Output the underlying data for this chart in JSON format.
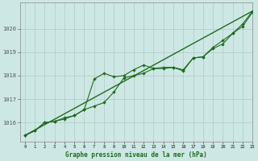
{
  "title": "Graphe pression niveau de la mer (hPa)",
  "background_color": "#cde8e4",
  "grid_color": "#b0c8c4",
  "line_color": "#1e6b1e",
  "xlim": [
    -0.5,
    23
  ],
  "ylim": [
    1015.2,
    1021.1
  ],
  "yticks": [
    1016,
    1017,
    1018,
    1019,
    1020
  ],
  "xticks": [
    0,
    1,
    2,
    3,
    4,
    5,
    6,
    7,
    8,
    9,
    10,
    11,
    12,
    13,
    14,
    15,
    16,
    17,
    18,
    19,
    20,
    21,
    22,
    23
  ],
  "series_marked_x": [
    0,
    1,
    2,
    3,
    4,
    5,
    6,
    7,
    8,
    9,
    10,
    11,
    12,
    13,
    14,
    15,
    16,
    17,
    18,
    19,
    20,
    21,
    22,
    23
  ],
  "series_marked_y": [
    1015.45,
    1015.65,
    1016.0,
    1016.05,
    1016.2,
    1016.3,
    1016.55,
    1017.85,
    1018.1,
    1017.95,
    1018.0,
    1018.25,
    1018.45,
    1018.3,
    1018.3,
    1018.35,
    1018.25,
    1018.75,
    1018.8,
    1019.15,
    1019.35,
    1019.8,
    1020.1,
    1020.7
  ],
  "series_upper_x": [
    0,
    1,
    2,
    3,
    4,
    5,
    6,
    7,
    8,
    9,
    10,
    11,
    12,
    13,
    14,
    15,
    16,
    17,
    18,
    19,
    20,
    21,
    22,
    23
  ],
  "series_upper_y": [
    1015.45,
    1015.65,
    1016.0,
    1016.05,
    1016.15,
    1016.3,
    1016.55,
    1016.7,
    1016.85,
    1017.3,
    1017.9,
    1018.0,
    1018.1,
    1018.3,
    1018.35,
    1018.35,
    1018.2,
    1018.75,
    1018.8,
    1019.2,
    1019.5,
    1019.8,
    1020.2,
    1020.75
  ],
  "series_trend_x": [
    0,
    23
  ],
  "series_trend_y": [
    1015.45,
    1020.75
  ]
}
